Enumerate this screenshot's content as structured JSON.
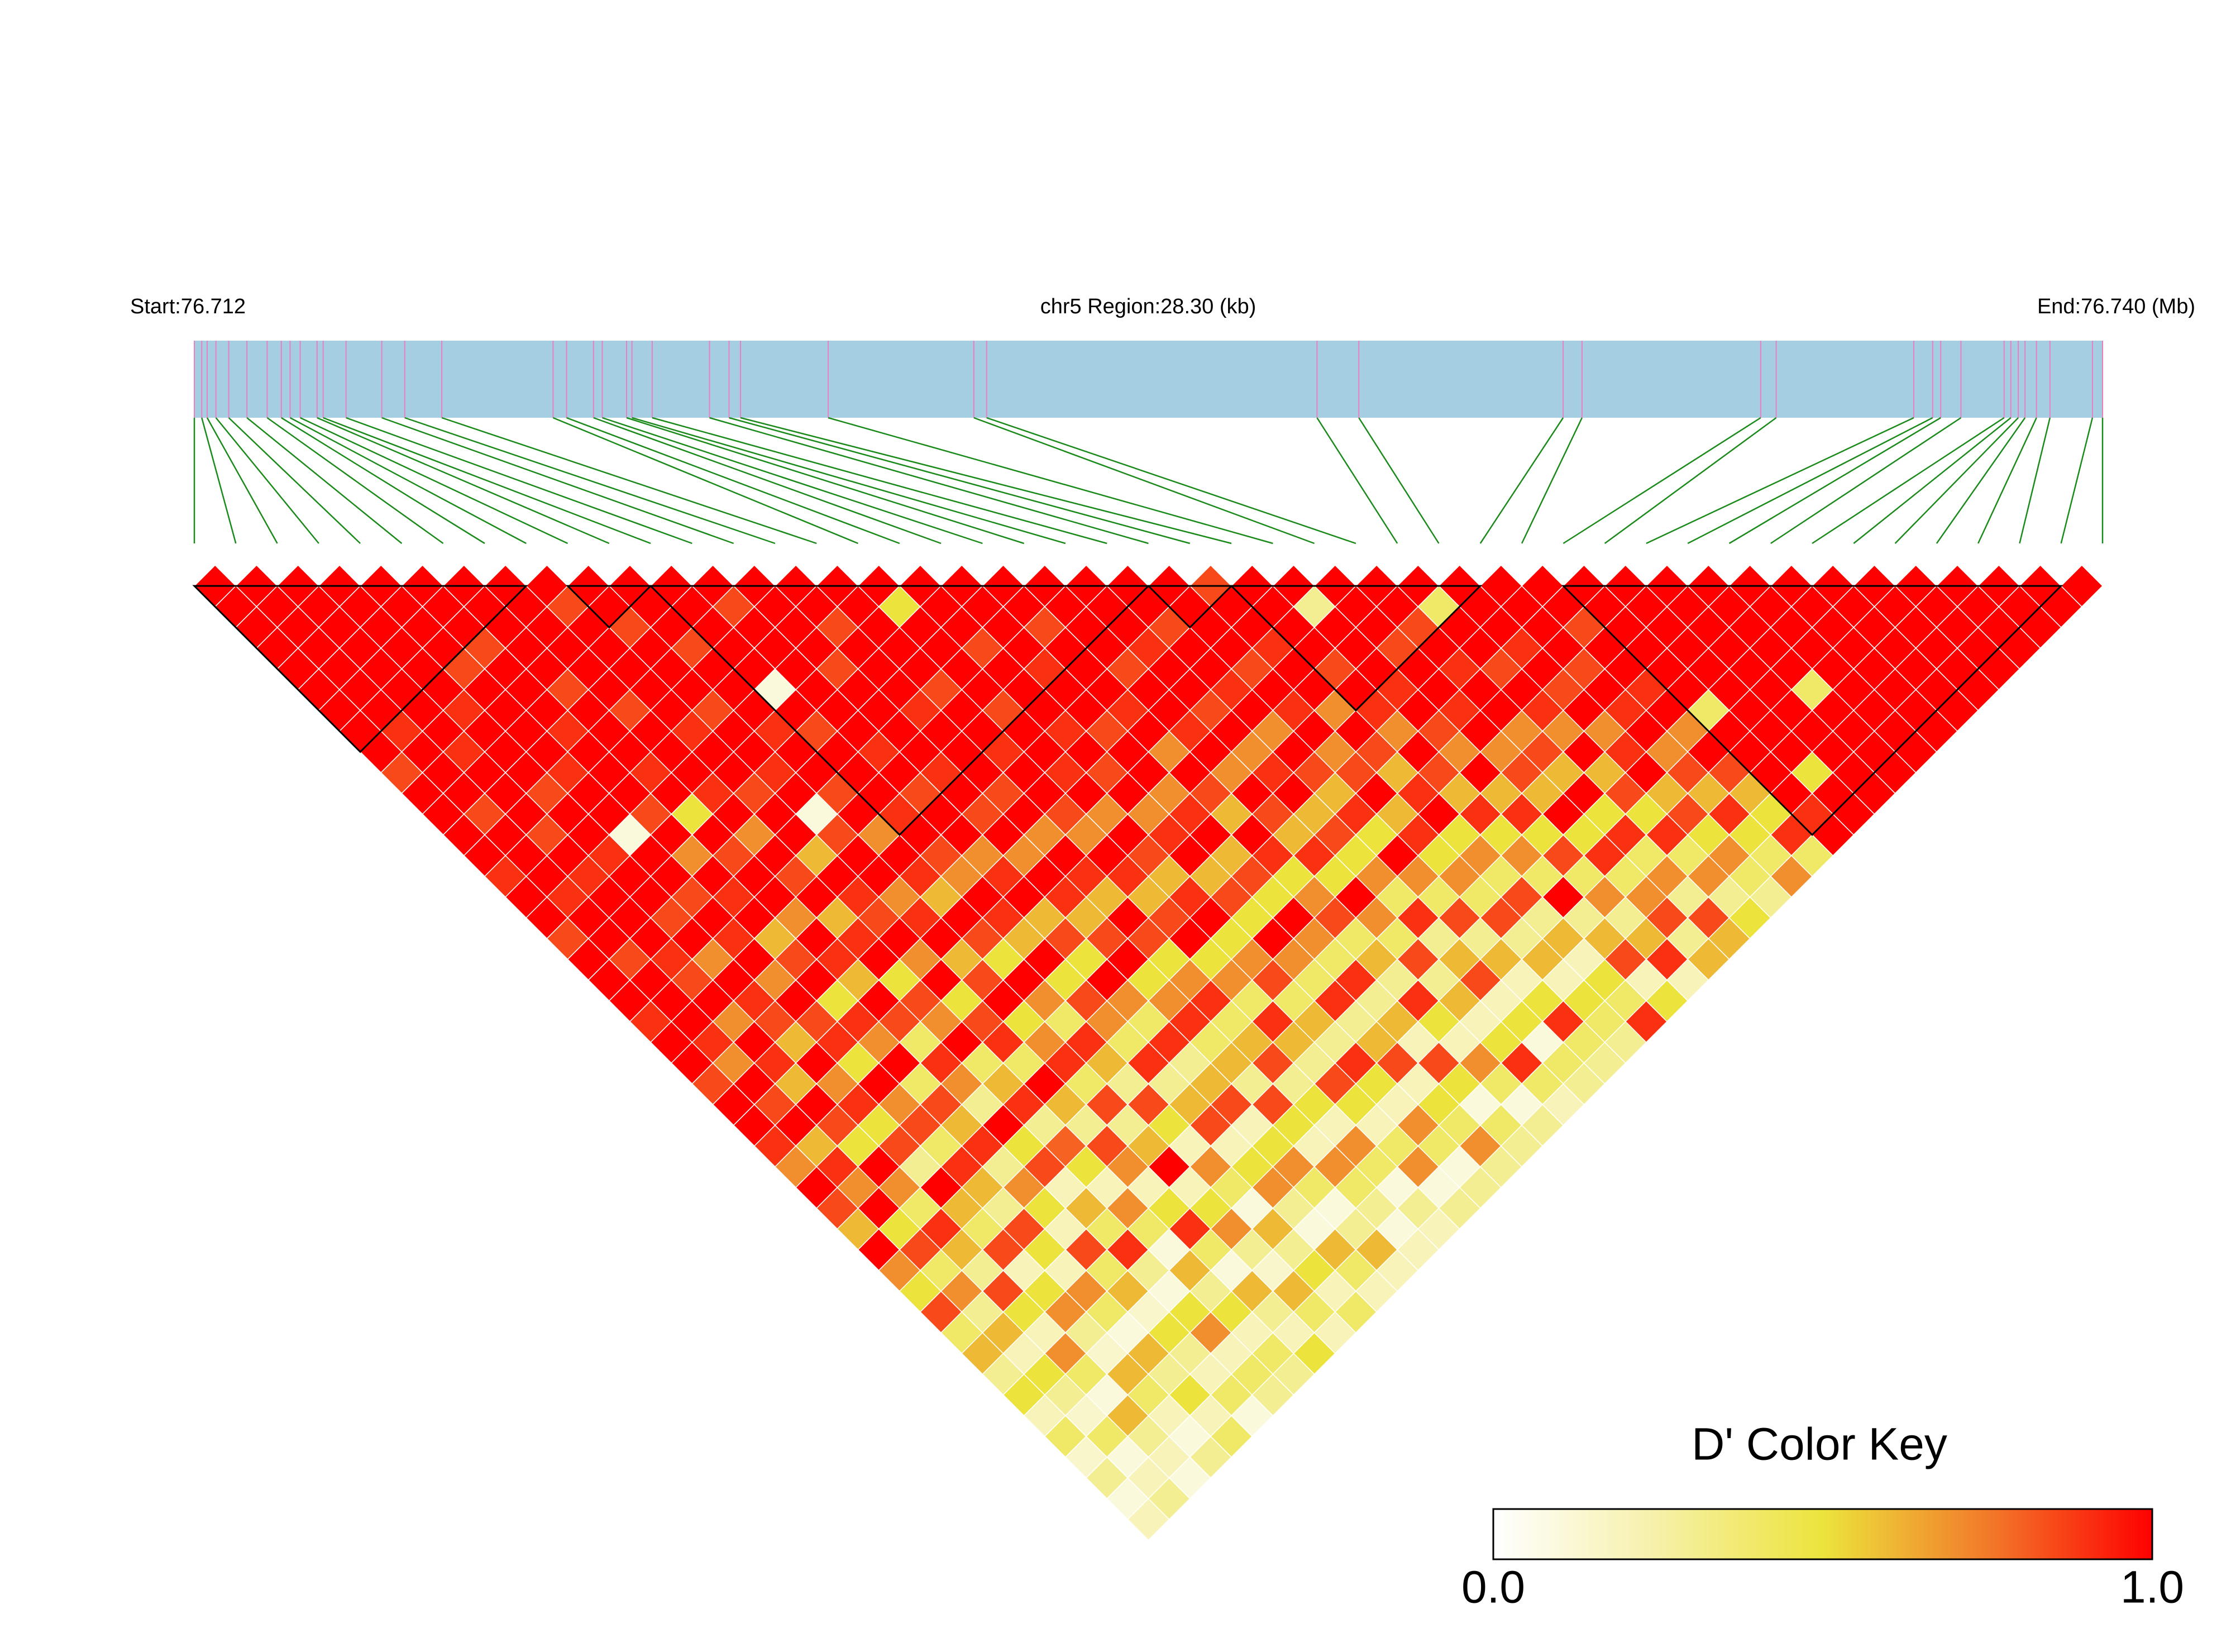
{
  "chart_data": {
    "type": "ld_heatmap",
    "start_label": "Start:76.712",
    "title": "chr5 Region:28.30 (kb)",
    "end_label": "End:76.740 (Mb)",
    "xlim": [
      76.712,
      76.7403
    ],
    "bar_color": "#a6cee3",
    "snp_tick_color": "#e87fc0",
    "connector_color": "#1a8a1a",
    "block_color": "#000000",
    "snp_positions": [
      76.712,
      76.71211,
      76.71219,
      76.71232,
      76.71251,
      76.71278,
      76.71308,
      76.71329,
      76.71342,
      76.71357,
      76.71382,
      76.71391,
      76.71425,
      76.71478,
      76.71512,
      76.71567,
      76.71732,
      76.71752,
      76.71792,
      76.71805,
      76.71841,
      76.71849,
      76.71879,
      76.71964,
      76.71993,
      76.7201,
      76.7214,
      76.72356,
      76.72375,
      76.72865,
      76.72927,
      76.7323,
      76.73258,
      76.73523,
      76.73546,
      76.7375,
      76.73778,
      76.7379,
      76.7382,
      76.73884,
      76.73894,
      76.73905,
      76.73915,
      76.73932,
      76.73952,
      76.74015,
      76.7403
    ],
    "blocks": [
      [
        0,
        8
      ],
      [
        9,
        11
      ],
      [
        11,
        23
      ],
      [
        23,
        25
      ],
      [
        25,
        31
      ],
      [
        33,
        45
      ]
    ],
    "dprime": [
      [
        1,
        1,
        1,
        1,
        1,
        1,
        1,
        1,
        1,
        0.85,
        1,
        1,
        1,
        1,
        0.9,
        1,
        1,
        0.85,
        1,
        1,
        1,
        0.9,
        1,
        1,
        0.85,
        1,
        1,
        0.9,
        0.7,
        1,
        0.85,
        0.6,
        1,
        0.7,
        0.5,
        0.85,
        0.4,
        0.6,
        0.3,
        0.5,
        0.2,
        0.4,
        0.15,
        0.3,
        0.1,
        0.2
      ],
      [
        1,
        1,
        1,
        1,
        1,
        1,
        1,
        0.9,
        1,
        1,
        1,
        0.85,
        1,
        1,
        1,
        0.9,
        1,
        1,
        0.85,
        1,
        1,
        1,
        0.9,
        0.7,
        1,
        0.85,
        1,
        0.6,
        0.9,
        0.7,
        1,
        0.5,
        0.85,
        0.4,
        0.7,
        0.3,
        0.6,
        0.2,
        0.5,
        0.3,
        0.15,
        0.4,
        0.1,
        0.2,
        0.3
      ],
      [
        1,
        1,
        1,
        1,
        1,
        1,
        1,
        1,
        0.9,
        1,
        1,
        1,
        0.85,
        1,
        0.9,
        1,
        1,
        1,
        0.9,
        0.85,
        1,
        0.7,
        1,
        0.9,
        0.6,
        1,
        0.85,
        0.5,
        1,
        0.7,
        0.4,
        0.9,
        0.6,
        0.3,
        0.85,
        0.5,
        0.2,
        0.7,
        0.4,
        0.1,
        0.6,
        0.3,
        0.2,
        0.1
      ],
      [
        1,
        1,
        1,
        1,
        1,
        1,
        0.9,
        1,
        1,
        1,
        0.85,
        1,
        1,
        0.9,
        1,
        1,
        0.85,
        1,
        0.7,
        1,
        0.9,
        0.85,
        0.6,
        1,
        0.7,
        0.9,
        0.5,
        0.85,
        0.3,
        1,
        0.6,
        0.4,
        0.85,
        0.2,
        0.5,
        0.7,
        0.3,
        0.15,
        0.6,
        0.4,
        0.2,
        0.1,
        0.3
      ],
      [
        1,
        1,
        1,
        1,
        0.85,
        1,
        1,
        1,
        1,
        0.9,
        1,
        1,
        0.1,
        1,
        1,
        0.85,
        1,
        0.9,
        1,
        0.7,
        1,
        0.85,
        0.9,
        0.5,
        1,
        0.7,
        0.85,
        0.4,
        0.9,
        0.6,
        0.3,
        0.85,
        0.5,
        0.2,
        0.7,
        0.4,
        0.1,
        0.6,
        0.3,
        0.5,
        0.2,
        0.4
      ],
      [
        1,
        1,
        1,
        0.85,
        1,
        1,
        1,
        0.9,
        1,
        1,
        1,
        0.85,
        1,
        0.7,
        1,
        0.9,
        1,
        0.6,
        0.85,
        1,
        0.5,
        0.9,
        0.7,
        1,
        0.4,
        0.85,
        0.6,
        0.9,
        0.3,
        0.7,
        0.5,
        0.2,
        0.85,
        0.4,
        0.6,
        0.15,
        0.5,
        0.3,
        0.2,
        0.4,
        0.1
      ],
      [
        1,
        1,
        1,
        1,
        1,
        0.85,
        1,
        1,
        1,
        0.9,
        1,
        0.5,
        1,
        0.85,
        1,
        1,
        0.7,
        1,
        0.9,
        0.6,
        1,
        0.85,
        0.4,
        0.9,
        0.7,
        0.3,
        1,
        0.5,
        0.85,
        0.2,
        0.6,
        0.4,
        0.9,
        0.3,
        0.1,
        0.5,
        0.7,
        0.2,
        0.4,
        0.3
      ],
      [
        1,
        1,
        1,
        1,
        1,
        1,
        0.85,
        1,
        1,
        1,
        0.9,
        1,
        0.7,
        1,
        0.85,
        1,
        0.6,
        0.9,
        1,
        0.5,
        0.85,
        0.7,
        1,
        0.4,
        0.6,
        0.9,
        0.3,
        0.8,
        0.5,
        0.2,
        0.7,
        0.4,
        0.1,
        0.6,
        0.3,
        0.5,
        0.2,
        0.4,
        0.3
      ],
      [
        1,
        0.85,
        1,
        1,
        1,
        1,
        1,
        0.9,
        1,
        1,
        0.85,
        1,
        1,
        0.6,
        1,
        0.9,
        0.85,
        1,
        0.7,
        1,
        0.5,
        0.85,
        0.9,
        0.4,
        1,
        0.6,
        0.3,
        0.85,
        0.7,
        0.2,
        0.5,
        0.9,
        0.4,
        0.1,
        0.6,
        0.3,
        0.2,
        0.5
      ],
      [
        1,
        1,
        0.85,
        1,
        1,
        1,
        0.85,
        1,
        1,
        0.9,
        1,
        0.1,
        0.85,
        1,
        1,
        0.7,
        0.9,
        1,
        0.6,
        0.85,
        1,
        0.5,
        0.7,
        0.9,
        0.4,
        0.85,
        0.3,
        0.6,
        1,
        0.2,
        0.5,
        0.7,
        0.3,
        0.15,
        0.6,
        0.4,
        0.2
      ],
      [
        1,
        1,
        1,
        0.85,
        1,
        1,
        1,
        0.9,
        1,
        1,
        0.85,
        1,
        0.7,
        1,
        0.9,
        0.6,
        1,
        0.85,
        0.5,
        1,
        0.7,
        0.4,
        0.9,
        0.6,
        0.3,
        0.85,
        0.5,
        0.2,
        0.7,
        0.4,
        0.1,
        0.6,
        0.3,
        0.5,
        0.2,
        0.4
      ],
      [
        1,
        1,
        1,
        1,
        1,
        0.1,
        1,
        0.85,
        1,
        1,
        1,
        0.9,
        1,
        0.85,
        0.7,
        1,
        0.9,
        0.6,
        1,
        0.5,
        0.85,
        0.7,
        0.4,
        0.9,
        0.3,
        0.6,
        0.85,
        0.2,
        0.5,
        0.7,
        0.3,
        0.1,
        0.6,
        0.4,
        0.2
      ],
      [
        1,
        0.85,
        1,
        1,
        1,
        1,
        1,
        1,
        0.9,
        1,
        0.85,
        1,
        1,
        0.7,
        0.9,
        1,
        0.6,
        0.85,
        0.5,
        1,
        0.7,
        0.4,
        0.9,
        0.3,
        0.6,
        0.85,
        0.2,
        0.5,
        0.7,
        0.4,
        0.1,
        0.3,
        0.6,
        0.2
      ],
      [
        1,
        1,
        1,
        1,
        0.85,
        1,
        1,
        1,
        1,
        0.9,
        1,
        0.85,
        1,
        0.7,
        1,
        0.9,
        0.6,
        0.85,
        1,
        0.5,
        0.7,
        0.9,
        0.4,
        0.6,
        0.3,
        0.85,
        0.5,
        0.2,
        0.7,
        0.4,
        0.3,
        0.1,
        0.2
      ],
      [
        1,
        1,
        0.85,
        1,
        1,
        1,
        0.9,
        1,
        1,
        1,
        0.85,
        1,
        0.7,
        1,
        0.9,
        0.6,
        1,
        0.85,
        0.5,
        0.7,
        0.9,
        0.4,
        0.6,
        0.85,
        0.3,
        0.5,
        0.2,
        0.7,
        0.4,
        0.1,
        0.3,
        0.2
      ],
      [
        1,
        1,
        1,
        1,
        1,
        0.85,
        1,
        1,
        0.9,
        1,
        1,
        0.85,
        0.7,
        1,
        0.9,
        0.6,
        0.85,
        1,
        0.5,
        0.7,
        0.4,
        0.9,
        0.6,
        0.3,
        0.85,
        0.5,
        0.2,
        0.4,
        0.7,
        0.1,
        0.3
      ],
      [
        1,
        0.5,
        1,
        1,
        1,
        1,
        0.85,
        1,
        1,
        0.9,
        1,
        0.7,
        1,
        0.85,
        0.6,
        0.9,
        1,
        0.5,
        0.7,
        0.85,
        0.4,
        0.6,
        0.3,
        0.9,
        0.5,
        0.2,
        0.7,
        0.4,
        0.1,
        0.3
      ],
      [
        1,
        1,
        1,
        0.85,
        1,
        1,
        1,
        0.9,
        1,
        0.85,
        1,
        0.7,
        0.9,
        1,
        0.6,
        0.85,
        0.5,
        1,
        0.7,
        0.4,
        0.9,
        0.3,
        0.6,
        0.85,
        0.2,
        0.5,
        0.4,
        0.7,
        0.3
      ],
      [
        1,
        1,
        1,
        1,
        0.9,
        1,
        1,
        0.85,
        1,
        1,
        0.7,
        0.9,
        1,
        0.6,
        0.85,
        0.5,
        1,
        0.7,
        0.4,
        0.9,
        0.3,
        0.6,
        0.2,
        0.85,
        0.5,
        0.1,
        0.4,
        0.3
      ],
      [
        1,
        1,
        0.85,
        1,
        1,
        1,
        0.9,
        1,
        0.7,
        1,
        0.85,
        0.6,
        1,
        0.9,
        0.5,
        0.7,
        0.85,
        0.4,
        0.6,
        0.3,
        0.9,
        0.5,
        0.2,
        0.7,
        0.4,
        0.1,
        0.3
      ],
      [
        1,
        1,
        1,
        1,
        0.85,
        1,
        1,
        0.9,
        1,
        0.7,
        1,
        0.85,
        0.6,
        0.9,
        0.5,
        1,
        0.7,
        0.4,
        0.85,
        0.3,
        0.6,
        0.2,
        0.5,
        0.9,
        0.4,
        0.2
      ],
      [
        1,
        1,
        1,
        0.9,
        1,
        1,
        0.85,
        1,
        0.7,
        0.9,
        1,
        0.6,
        0.85,
        0.5,
        0.7,
        0.4,
        0.9,
        0.3,
        0.6,
        0.85,
        0.2,
        0.5,
        0.1,
        0.4,
        0.3
      ],
      [
        1,
        1,
        0.85,
        1,
        1,
        0.9,
        1,
        0.7,
        1,
        0.85,
        0.6,
        0.9,
        0.5,
        1,
        0.7,
        0.4,
        0.85,
        0.3,
        0.6,
        0.2,
        0.5,
        0.9,
        0.4,
        0.3
      ],
      [
        1,
        1,
        1,
        1,
        0.85,
        1,
        0.9,
        1,
        0.7,
        0.85,
        1,
        0.6,
        0.9,
        0.5,
        0.7,
        0.4,
        0.85,
        0.3,
        0.6,
        0.2,
        0.5,
        0.4,
        0.3
      ],
      [
        0.85,
        1,
        1,
        0.9,
        1,
        1,
        0.7,
        1,
        0.85,
        0.6,
        0.9,
        1,
        0.5,
        0.7,
        0.4,
        0.85,
        0.3,
        0.6,
        0.2,
        0.5,
        0.4,
        0.9
      ],
      [
        1,
        1,
        1,
        1,
        0.85,
        1,
        0.9,
        0.7,
        1,
        0.85,
        0.6,
        0.9,
        0.5,
        0.7,
        0.4,
        1,
        0.3,
        0.6,
        0.85,
        0.2,
        0.5
      ],
      [
        1,
        0.3,
        1,
        1,
        1,
        0.9,
        1,
        0.85,
        0.7,
        1,
        0.6,
        0.9,
        0.5,
        0.85,
        0.4,
        0.7,
        0.3,
        0.6,
        0.9,
        0.2
      ],
      [
        1,
        1,
        1,
        0.85,
        1,
        1,
        0.9,
        1,
        0.7,
        0.85,
        0.6,
        1,
        0.5,
        0.9,
        0.4,
        0.7,
        0.85,
        0.3,
        0.6
      ],
      [
        1,
        1,
        0.85,
        1,
        0.9,
        1,
        1,
        0.7,
        0.85,
        0.6,
        1,
        0.5,
        0.9,
        0.4,
        0.7,
        0.3,
        0.85,
        0.6
      ],
      [
        1,
        0.4,
        1,
        1,
        0.85,
        1,
        0.9,
        0.7,
        1,
        0.6,
        0.85,
        0.5,
        0.9,
        0.4,
        0.7,
        0.3,
        0.5
      ],
      [
        1,
        1,
        1,
        0.9,
        1,
        0.85,
        1,
        0.7,
        0.9,
        1,
        0.6,
        0.85,
        0.5,
        0.7,
        0.4,
        0.3
      ],
      [
        1,
        1,
        1,
        1,
        0.85,
        1,
        0.9,
        1,
        0.7,
        0.85,
        0.6,
        0.9,
        0.5,
        0.4,
        0.7
      ],
      [
        1,
        1,
        0.85,
        1,
        1,
        0.9,
        1,
        0.7,
        1,
        0.85,
        0.6,
        0.5,
        0.9,
        0.4
      ],
      [
        1,
        1,
        1,
        1,
        1,
        1,
        0.4,
        1,
        1,
        1,
        1,
        0.9,
        1
      ],
      [
        1,
        1,
        1,
        1,
        1,
        1,
        1,
        1,
        1,
        0.5,
        1,
        1
      ],
      [
        1,
        1,
        1,
        1,
        1,
        1,
        1,
        1,
        1,
        1,
        1
      ],
      [
        1,
        1,
        1,
        1,
        1,
        0.4,
        1,
        1,
        1,
        1
      ],
      [
        1,
        1,
        1,
        1,
        1,
        1,
        1,
        1,
        1
      ],
      [
        1,
        1,
        1,
        1,
        1,
        1,
        1,
        1
      ],
      [
        1,
        1,
        1,
        1,
        1,
        1,
        1
      ],
      [
        1,
        1,
        1,
        1,
        1,
        1
      ],
      [
        1,
        1,
        1,
        1,
        1
      ],
      [
        1,
        1,
        1,
        1
      ],
      [
        1,
        1,
        1
      ],
      [
        1,
        1
      ],
      [
        1
      ]
    ],
    "colorbar": {
      "title": "D' Color Key",
      "lim": [
        0,
        1
      ],
      "ticks": [
        {
          "value": 0,
          "label": "0.0"
        },
        {
          "value": 1,
          "label": "1.0"
        }
      ],
      "colors": [
        "#ffffff",
        "#f6f0a8",
        "#ece43c",
        "#f27a2a",
        "#ff0000"
      ]
    }
  }
}
